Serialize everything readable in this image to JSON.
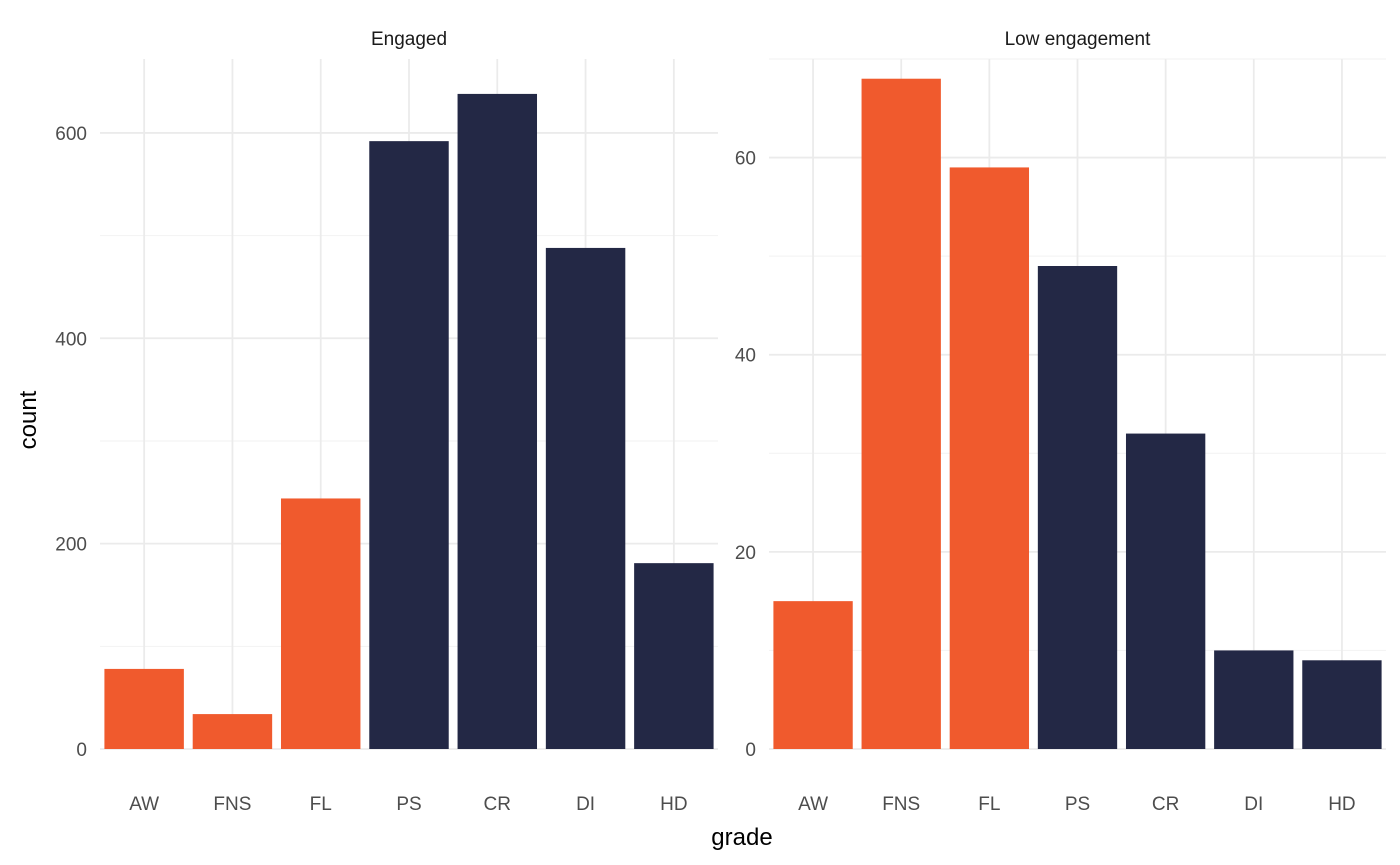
{
  "colors": {
    "fail": "#f05a2d",
    "pass": "#232845"
  },
  "chart_data": {
    "type": "bar",
    "xlabel": "grade",
    "ylabel": "count",
    "categories": [
      "AW",
      "FNS",
      "FL",
      "PS",
      "CR",
      "DI",
      "HD"
    ],
    "bar_color_group": [
      "fail",
      "fail",
      "fail",
      "pass",
      "pass",
      "pass",
      "pass"
    ],
    "facets": [
      {
        "title": "Engaged",
        "values": [
          78,
          34,
          244,
          592,
          638,
          488,
          181
        ],
        "ylim": [
          0,
          672
        ],
        "yticks": [
          0,
          200,
          400,
          600
        ]
      },
      {
        "title": "Low engagement",
        "values": [
          15,
          68,
          59,
          49,
          32,
          10,
          9
        ],
        "ylim": [
          0,
          70
        ],
        "yticks": [
          0,
          20,
          40,
          60
        ]
      }
    ]
  }
}
